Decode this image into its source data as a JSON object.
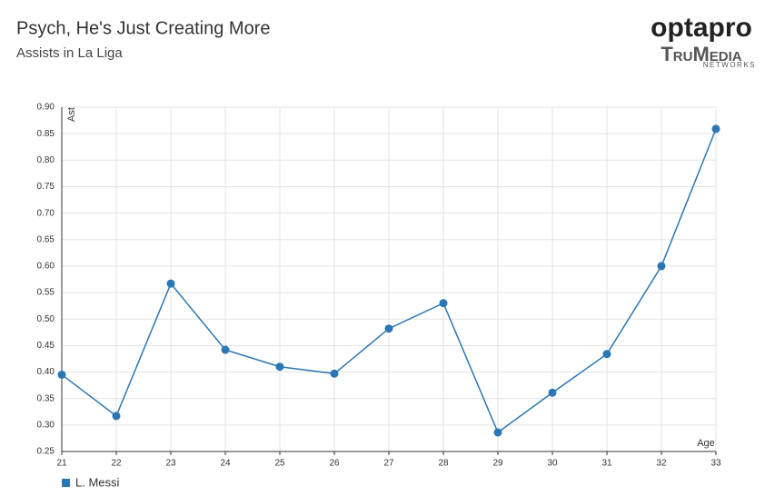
{
  "chart_data": {
    "type": "line",
    "title": "Psych, He's Just Creating More",
    "subtitle": "Assists in La Liga",
    "logo": {
      "brand": "optapro",
      "name": "TruMedia",
      "tagline": "NETWORKS"
    },
    "x_label": "Age",
    "y_label": "Ast",
    "x": [
      21,
      22,
      23,
      24,
      25,
      26,
      27,
      28,
      29,
      30,
      31,
      32,
      33
    ],
    "series": [
      {
        "name": "L. Messi",
        "color": "#2b76b5",
        "values": [
          0.395,
          0.317,
          0.567,
          0.442,
          0.41,
          0.397,
          0.482,
          0.53,
          0.286,
          0.361,
          0.434,
          0.6,
          0.859
        ]
      }
    ],
    "xlim": [
      21,
      33
    ],
    "xticks": [
      21,
      22,
      23,
      24,
      25,
      26,
      27,
      28,
      29,
      30,
      31,
      32,
      33
    ],
    "ylim": [
      0.25,
      0.9
    ],
    "yticks": [
      0.25,
      {
        "value": 0.3,
        "label": "0.30"
      },
      0.35,
      {
        "value": 0.4,
        "label": "0.40"
      },
      0.45,
      {
        "value": 0.5,
        "label": "0.50"
      },
      0.55,
      {
        "value": 0.6,
        "label": "0.60"
      },
      0.65,
      {
        "value": 0.7,
        "label": "0.70"
      },
      0.75,
      {
        "value": 0.8,
        "label": "0.80"
      },
      0.85,
      {
        "value": 0.9,
        "label": "0.90"
      }
    ],
    "grid": true
  }
}
